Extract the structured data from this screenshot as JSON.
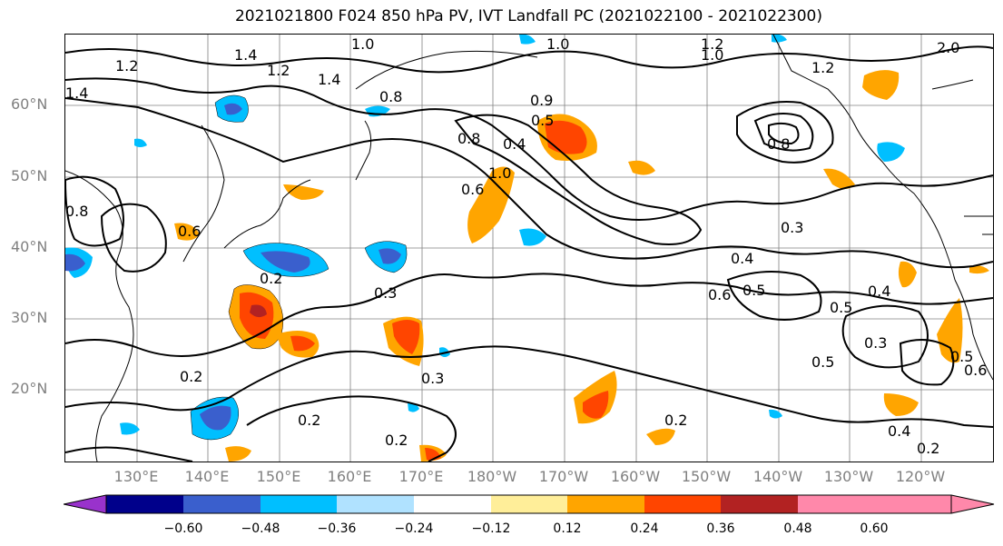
{
  "title": "2021021800 F024 850 hPa PV, IVT Landfall PC (2021022100 - 2021022300)",
  "lat_ticks": [
    "60°N",
    "50°N",
    "40°N",
    "30°N",
    "20°N"
  ],
  "lon_ticks": [
    "130°E",
    "140°E",
    "150°E",
    "160°E",
    "170°E",
    "180°W",
    "170°W",
    "160°W",
    "150°W",
    "140°W",
    "130°W",
    "120°W"
  ],
  "colorbar": {
    "tick_labels": [
      "−0.60",
      "−0.48",
      "−0.36",
      "−0.24",
      "−0.12",
      "0.12",
      "0.24",
      "0.36",
      "0.48",
      "0.60"
    ],
    "colors": [
      "#9932cc",
      "#00008b",
      "#3a5fcd",
      "#00bfff",
      "#b0e2ff",
      "#ffffff",
      "#ffee99",
      "#ffa500",
      "#ff4500",
      "#b22222",
      "#ff88aa"
    ]
  },
  "contour_labels": [
    {
      "text": "1.0"
    },
    {
      "text": "1.2"
    },
    {
      "text": "1.4"
    },
    {
      "text": "1.2"
    },
    {
      "text": "1.4"
    },
    {
      "text": "0.8"
    },
    {
      "text": "1.0"
    },
    {
      "text": "0.9"
    },
    {
      "text": "0.5"
    },
    {
      "text": "0.8"
    },
    {
      "text": "0.4"
    },
    {
      "text": "1.0"
    },
    {
      "text": "0.6"
    },
    {
      "text": "1.2"
    },
    {
      "text": "1.0"
    },
    {
      "text": "2.0"
    },
    {
      "text": "1.2"
    },
    {
      "text": "0.8"
    },
    {
      "text": "0.3"
    },
    {
      "text": "0.4"
    },
    {
      "text": "0.6"
    },
    {
      "text": "0.5"
    },
    {
      "text": "0.2"
    },
    {
      "text": "0.3"
    },
    {
      "text": "0.2"
    },
    {
      "text": "0.3"
    },
    {
      "text": "0.2"
    },
    {
      "text": "0.2"
    },
    {
      "text": "0.2"
    },
    {
      "text": "0.5"
    },
    {
      "text": "0.4"
    },
    {
      "text": "0.5"
    },
    {
      "text": "0.3"
    },
    {
      "text": "0.4"
    },
    {
      "text": "0.2"
    },
    {
      "text": "0.6"
    },
    {
      "text": "1.4"
    },
    {
      "text": "0.8"
    },
    {
      "text": "0.5"
    },
    {
      "text": "0.6"
    }
  ]
}
